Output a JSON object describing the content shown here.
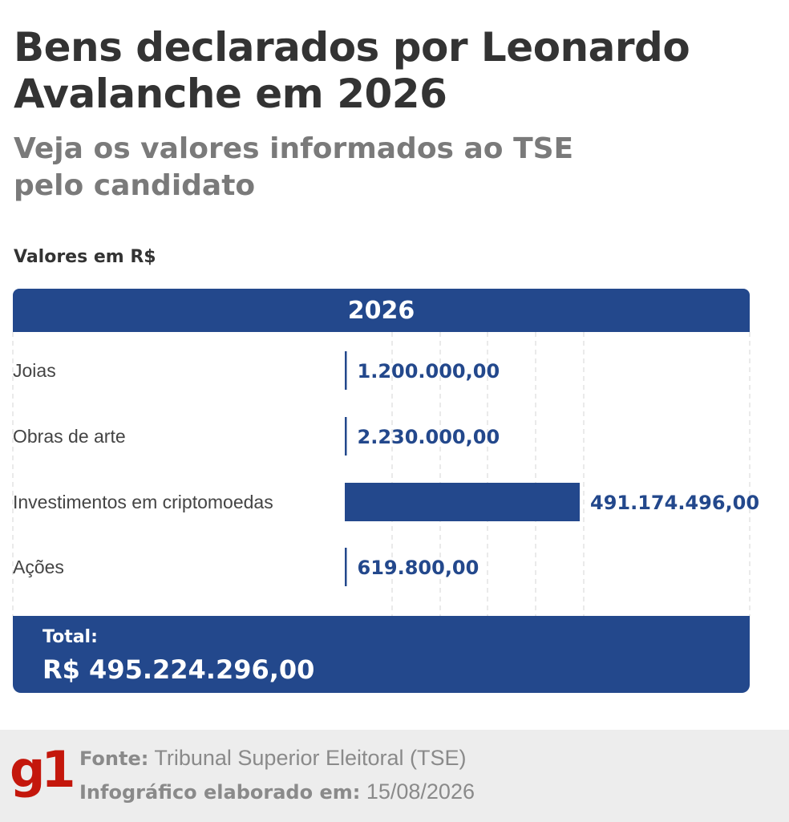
{
  "header": {
    "title": "Bens declarados por Leonardo Avalanche em 2026",
    "subtitle": "Veja os valores informados ao TSE pelo candidato",
    "units": "Valores em R$",
    "year_label": "2026"
  },
  "chart_data": {
    "type": "bar",
    "orientation": "horizontal",
    "categories": [
      "Joias",
      "Obras de arte",
      "Investimentos em criptomoedas",
      "Ações"
    ],
    "values": [
      1200000,
      2230000,
      491174496,
      619800
    ],
    "value_labels": [
      "1.200.000,00",
      "2.230.000,00",
      "491.174.496,00",
      "619.800,00"
    ],
    "series": [
      {
        "values": [
          1200000,
          2230000,
          491174496,
          619800
        ]
      }
    ],
    "xlim": [
      0,
      491174496
    ],
    "grid": true,
    "bar_color": "#23488c",
    "legend": false
  },
  "total": {
    "label": "Total:",
    "value": "R$ 495.224.296,00"
  },
  "footer": {
    "logo": "g1",
    "source_key": "Fonte:",
    "source_value": "Tribunal Superior Eleitoral (TSE)",
    "date_key": "Infográfico elaborado em:",
    "date_value": "15/08/2026"
  },
  "colors": {
    "accent": "#23488c",
    "title": "#333333",
    "subtitle": "#7a7a7a",
    "logo": "#c4170c",
    "footer_bg": "#ededed"
  }
}
